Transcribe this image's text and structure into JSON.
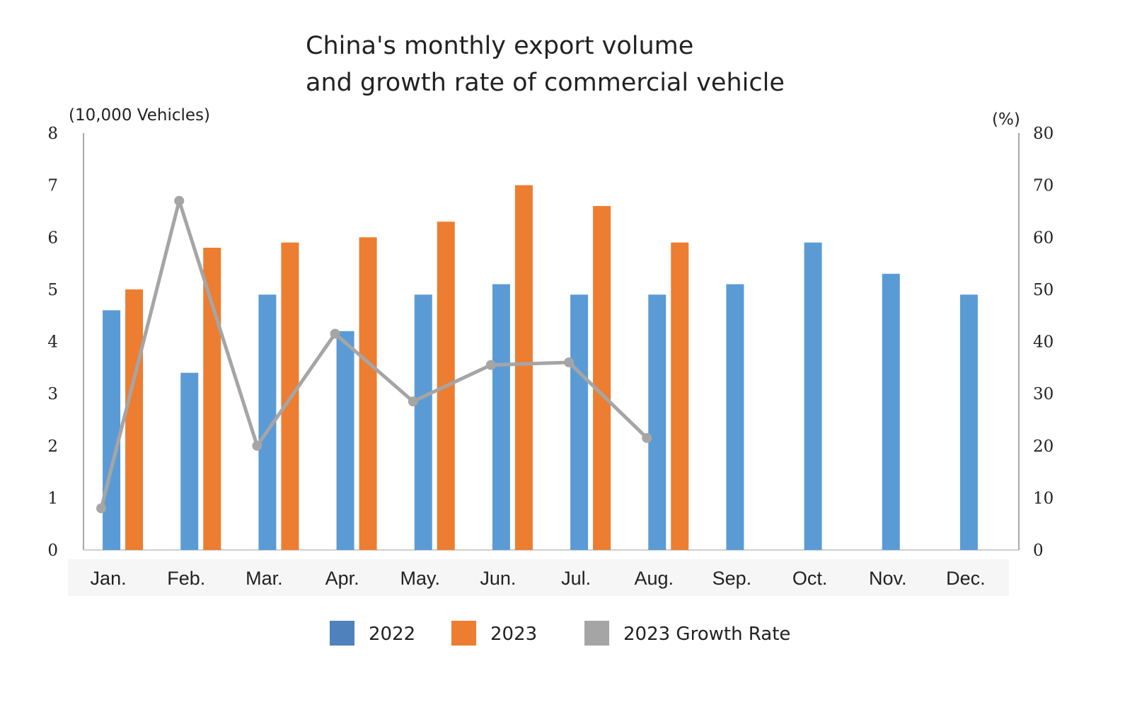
{
  "chart_data": {
    "type": "bar",
    "title_lines": [
      "China's monthly export volume",
      "and growth rate of commercial vehicle"
    ],
    "ylabel_left": "(10,000 Vehicles)",
    "ylabel_right": "(%)",
    "categories": [
      "Jan.",
      "Feb.",
      "Mar.",
      "Apr.",
      "May.",
      "Jun.",
      "Jul.",
      "Aug.",
      "Sep.",
      "Oct.",
      "Nov.",
      "Dec."
    ],
    "ylim_left": [
      0,
      8
    ],
    "yticks_left": [
      "0",
      "1",
      "2",
      "3",
      "4",
      "5",
      "6",
      "7",
      "8"
    ],
    "ylim_right": [
      0,
      80
    ],
    "yticks_right": [
      "0",
      "10",
      "20",
      "30",
      "40",
      "50",
      "60",
      "70",
      "80"
    ],
    "grid": false,
    "legend_position": "bottom",
    "series": [
      {
        "name": "2022",
        "kind": "bar",
        "axis": "left",
        "color": "#5b9bd5",
        "values": [
          4.6,
          3.4,
          4.9,
          4.2,
          4.9,
          5.1,
          4.9,
          4.9,
          5.1,
          5.9,
          5.3,
          4.9
        ]
      },
      {
        "name": "2023",
        "kind": "bar",
        "axis": "left",
        "color": "#ed7d31",
        "values": [
          5.0,
          5.8,
          5.9,
          6.0,
          6.3,
          7.0,
          6.6,
          5.9,
          null,
          null,
          null,
          null
        ]
      },
      {
        "name": "2023 Growth Rate",
        "kind": "line",
        "axis": "right",
        "color": "#a5a5a5",
        "values": [
          8,
          67,
          20,
          41.5,
          28.5,
          35.5,
          36,
          21.5,
          null,
          null,
          null,
          null
        ]
      }
    ],
    "legend_swatch_colors": [
      "#4f81bd",
      "#ed7d31",
      "#a5a5a5"
    ]
  }
}
